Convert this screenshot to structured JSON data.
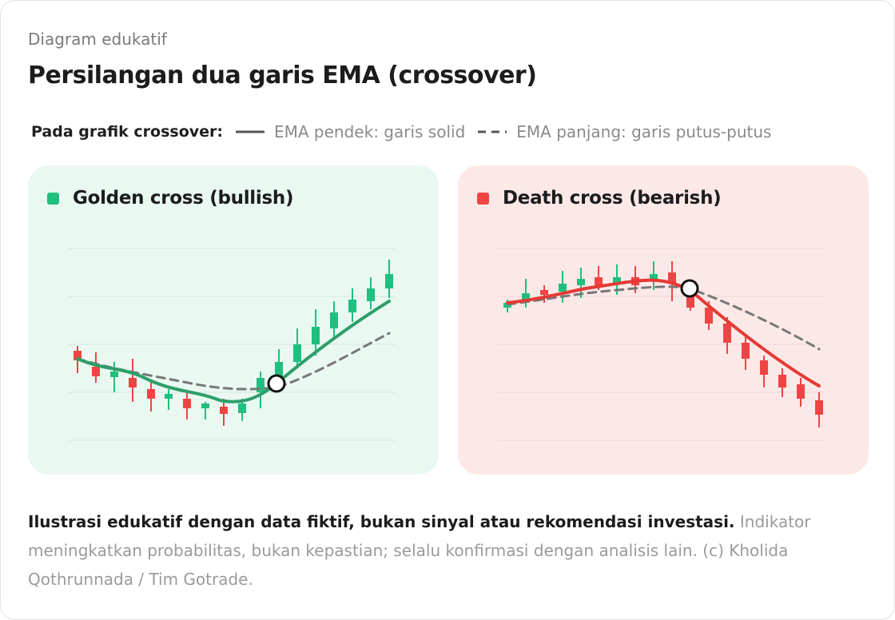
{
  "header": {
    "eyebrow": "Diagram edukatif",
    "title": "Persilangan dua garis EMA (crossover)"
  },
  "legend": {
    "lead": "Pada grafik crossover:",
    "short_ema": "EMA pendek: garis solid",
    "long_ema": "EMA panjang: garis putus-putus"
  },
  "colors": {
    "bull": "#1fbf7f",
    "bear": "#ef4444",
    "bull_line": "#2e9e6b",
    "bear_line": "#e53935",
    "long_ema": "#777777"
  },
  "panels": {
    "golden": {
      "title": "Golden cross (bullish)",
      "icon": "green-square-icon"
    },
    "death": {
      "title": "Death cross (bearish)",
      "icon": "red-square-icon"
    }
  },
  "footer": {
    "strong": "Ilustrasi edukatif dengan data fiktif, bukan sinyal atau rekomendasi investasi.",
    "muted": "Indikator meningkatkan probabilitas, bukan kepastian; selalu konfirmasi dengan analisis lain. (c) Kholida Qothrunnada / Tim Gotrade."
  }
}
